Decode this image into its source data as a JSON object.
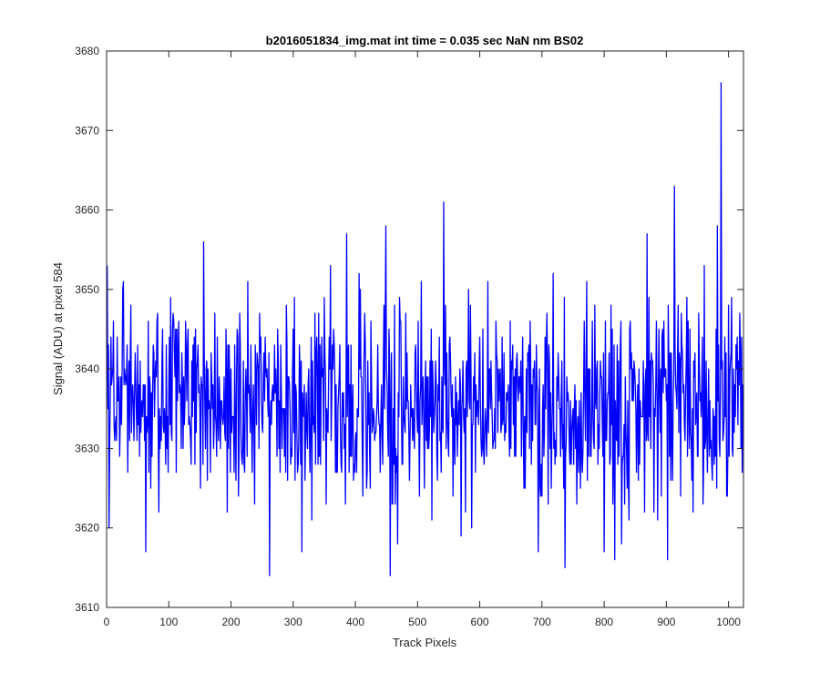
{
  "chart_data": {
    "type": "line",
    "title": "b2016051834_img.mat int time = 0.035 sec  NaN nm BS02",
    "xlabel": "Track Pixels",
    "ylabel": "Signal (ADU) at pixel 584",
    "xlim": [
      0,
      1024
    ],
    "ylim": [
      3610,
      3680
    ],
    "xticks": [
      0,
      100,
      200,
      300,
      400,
      500,
      600,
      700,
      800,
      900,
      1000
    ],
    "yticks": [
      3610,
      3620,
      3630,
      3640,
      3650,
      3660,
      3670,
      3680
    ],
    "grid": false,
    "line_color": "#0000ff",
    "series": [
      {
        "sampled_every_n_pixels": 1,
        "x_start": 1,
        "noise_mean": 3635.5,
        "noise_min": 3614,
        "noise_max": 3676,
        "notable_points": [
          {
            "x": 1,
            "y": 3653
          },
          {
            "x": 4,
            "y": 3620
          },
          {
            "x": 27,
            "y": 3651
          },
          {
            "x": 63,
            "y": 3617
          },
          {
            "x": 156,
            "y": 3656
          },
          {
            "x": 262,
            "y": 3614
          },
          {
            "x": 386,
            "y": 3657
          },
          {
            "x": 449,
            "y": 3658
          },
          {
            "x": 456,
            "y": 3614
          },
          {
            "x": 542,
            "y": 3661
          },
          {
            "x": 737,
            "y": 3615
          },
          {
            "x": 817,
            "y": 3616
          },
          {
            "x": 869,
            "y": 3657
          },
          {
            "x": 902,
            "y": 3616
          },
          {
            "x": 913,
            "y": 3663
          },
          {
            "x": 982,
            "y": 3658
          },
          {
            "x": 988,
            "y": 3676
          }
        ]
      }
    ]
  }
}
